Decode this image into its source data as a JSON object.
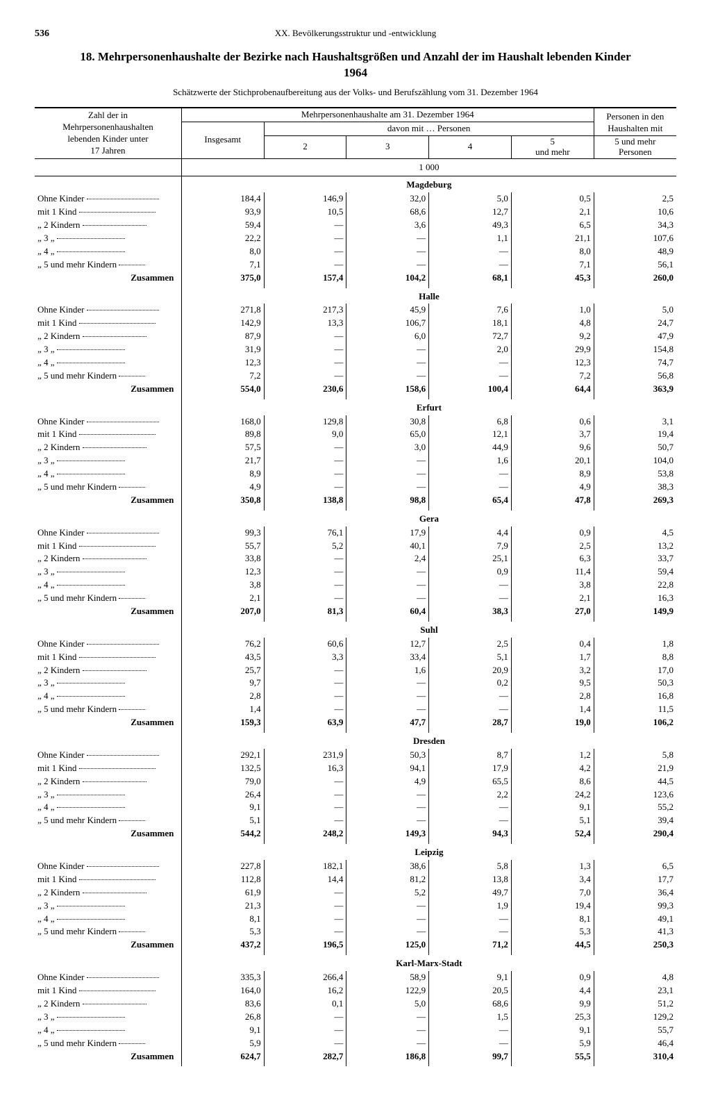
{
  "page_number": "536",
  "chapter": "XX. Bevölkerungsstruktur und -entwicklung",
  "title": "18. Mehrpersonenhaushalte der Bezirke nach Haushaltsgrößen und Anzahl der im Haushalt lebenden Kinder 1964",
  "subtitle": "Schätzwerte der Stichprobenaufbereitung aus der Volks- und Berufszählung vom 31. Dezember 1964",
  "header": {
    "stub_line1": "Zahl der in",
    "stub_line2": "Mehrpersonenhaushalten",
    "stub_line3": "lebenden Kinder unter",
    "stub_line4": "17 Jahren",
    "span_top": "Mehrpersonenhaushalte am 31. Dezember 1964",
    "insgesamt": "Insgesamt",
    "davon": "davon mit … Personen",
    "c2": "2",
    "c3": "3",
    "c4": "4",
    "c5": "5 und mehr",
    "right1": "Personen in den",
    "right2": "Haushalten mit",
    "right3": "5 und mehr",
    "right4": "Personen",
    "unit": "1 000"
  },
  "row_labels": [
    "Ohne Kinder",
    "mit 1 Kind",
    "„   2 Kindern",
    "„   3      „",
    "„   4      „",
    "„   5 und mehr Kindern"
  ],
  "sum_label": "Zusammen",
  "regions": [
    {
      "name": "Magdeburg",
      "rows": [
        [
          "184,4",
          "146,9",
          "32,0",
          "5,0",
          "0,5",
          "2,5"
        ],
        [
          "93,9",
          "10,5",
          "68,6",
          "12,7",
          "2,1",
          "10,6"
        ],
        [
          "59,4",
          "—",
          "3,6",
          "49,3",
          "6,5",
          "34,3"
        ],
        [
          "22,2",
          "—",
          "—",
          "1,1",
          "21,1",
          "107,6"
        ],
        [
          "8,0",
          "—",
          "—",
          "—",
          "8,0",
          "48,9"
        ],
        [
          "7,1",
          "—",
          "—",
          "—",
          "7,1",
          "56,1"
        ]
      ],
      "sum": [
        "375,0",
        "157,4",
        "104,2",
        "68,1",
        "45,3",
        "260,0"
      ]
    },
    {
      "name": "Halle",
      "rows": [
        [
          "271,8",
          "217,3",
          "45,9",
          "7,6",
          "1,0",
          "5,0"
        ],
        [
          "142,9",
          "13,3",
          "106,7",
          "18,1",
          "4,8",
          "24,7"
        ],
        [
          "87,9",
          "—",
          "6,0",
          "72,7",
          "9,2",
          "47,9"
        ],
        [
          "31,9",
          "—",
          "—",
          "2,0",
          "29,9",
          "154,8"
        ],
        [
          "12,3",
          "—",
          "—",
          "—",
          "12,3",
          "74,7"
        ],
        [
          "7,2",
          "—",
          "—",
          "—",
          "7,2",
          "56,8"
        ]
      ],
      "sum": [
        "554,0",
        "230,6",
        "158,6",
        "100,4",
        "64,4",
        "363,9"
      ]
    },
    {
      "name": "Erfurt",
      "rows": [
        [
          "168,0",
          "129,8",
          "30,8",
          "6,8",
          "0,6",
          "3,1"
        ],
        [
          "89,8",
          "9,0",
          "65,0",
          "12,1",
          "3,7",
          "19,4"
        ],
        [
          "57,5",
          "—",
          "3,0",
          "44,9",
          "9,6",
          "50,7"
        ],
        [
          "21,7",
          "—",
          "—",
          "1,6",
          "20,1",
          "104,0"
        ],
        [
          "8,9",
          "—",
          "—",
          "—",
          "8,9",
          "53,8"
        ],
        [
          "4,9",
          "—",
          "—",
          "—",
          "4,9",
          "38,3"
        ]
      ],
      "sum": [
        "350,8",
        "138,8",
        "98,8",
        "65,4",
        "47,8",
        "269,3"
      ]
    },
    {
      "name": "Gera",
      "rows": [
        [
          "99,3",
          "76,1",
          "17,9",
          "4,4",
          "0,9",
          "4,5"
        ],
        [
          "55,7",
          "5,2",
          "40,1",
          "7,9",
          "2,5",
          "13,2"
        ],
        [
          "33,8",
          "—",
          "2,4",
          "25,1",
          "6,3",
          "33,7"
        ],
        [
          "12,3",
          "—",
          "—",
          "0,9",
          "11,4",
          "59,4"
        ],
        [
          "3,8",
          "—",
          "—",
          "—",
          "3,8",
          "22,8"
        ],
        [
          "2,1",
          "—",
          "—",
          "—",
          "2,1",
          "16,3"
        ]
      ],
      "sum": [
        "207,0",
        "81,3",
        "60,4",
        "38,3",
        "27,0",
        "149,9"
      ]
    },
    {
      "name": "Suhl",
      "rows": [
        [
          "76,2",
          "60,6",
          "12,7",
          "2,5",
          "0,4",
          "1,8"
        ],
        [
          "43,5",
          "3,3",
          "33,4",
          "5,1",
          "1,7",
          "8,8"
        ],
        [
          "25,7",
          "—",
          "1,6",
          "20,9",
          "3,2",
          "17,0"
        ],
        [
          "9,7",
          "—",
          "—",
          "0,2",
          "9,5",
          "50,3"
        ],
        [
          "2,8",
          "—",
          "—",
          "—",
          "2,8",
          "16,8"
        ],
        [
          "1,4",
          "—",
          "—",
          "—",
          "1,4",
          "11,5"
        ]
      ],
      "sum": [
        "159,3",
        "63,9",
        "47,7",
        "28,7",
        "19,0",
        "106,2"
      ]
    },
    {
      "name": "Dresden",
      "rows": [
        [
          "292,1",
          "231,9",
          "50,3",
          "8,7",
          "1,2",
          "5,8"
        ],
        [
          "132,5",
          "16,3",
          "94,1",
          "17,9",
          "4,2",
          "21,9"
        ],
        [
          "79,0",
          "—",
          "4,9",
          "65,5",
          "8,6",
          "44,5"
        ],
        [
          "26,4",
          "—",
          "—",
          "2,2",
          "24,2",
          "123,6"
        ],
        [
          "9,1",
          "—",
          "—",
          "—",
          "9,1",
          "55,2"
        ],
        [
          "5,1",
          "—",
          "—",
          "—",
          "5,1",
          "39,4"
        ]
      ],
      "sum": [
        "544,2",
        "248,2",
        "149,3",
        "94,3",
        "52,4",
        "290,4"
      ]
    },
    {
      "name": "Leipzig",
      "rows": [
        [
          "227,8",
          "182,1",
          "38,6",
          "5,8",
          "1,3",
          "6,5"
        ],
        [
          "112,8",
          "14,4",
          "81,2",
          "13,8",
          "3,4",
          "17,7"
        ],
        [
          "61,9",
          "—",
          "5,2",
          "49,7",
          "7,0",
          "36,4"
        ],
        [
          "21,3",
          "—",
          "—",
          "1,9",
          "19,4",
          "99,3"
        ],
        [
          "8,1",
          "—",
          "—",
          "—",
          "8,1",
          "49,1"
        ],
        [
          "5,3",
          "—",
          "—",
          "—",
          "5,3",
          "41,3"
        ]
      ],
      "sum": [
        "437,2",
        "196,5",
        "125,0",
        "71,2",
        "44,5",
        "250,3"
      ]
    },
    {
      "name": "Karl-Marx-Stadt",
      "rows": [
        [
          "335,3",
          "266,4",
          "58,9",
          "9,1",
          "0,9",
          "4,8"
        ],
        [
          "164,0",
          "16,2",
          "122,9",
          "20,5",
          "4,4",
          "23,1"
        ],
        [
          "83,6",
          "0,1",
          "5,0",
          "68,6",
          "9,9",
          "51,2"
        ],
        [
          "26,8",
          "—",
          "—",
          "1,5",
          "25,3",
          "129,2"
        ],
        [
          "9,1",
          "—",
          "—",
          "—",
          "9,1",
          "55,7"
        ],
        [
          "5,9",
          "—",
          "—",
          "—",
          "5,9",
          "46,4"
        ]
      ],
      "sum": [
        "624,7",
        "282,7",
        "186,8",
        "99,7",
        "55,5",
        "310,4"
      ]
    }
  ]
}
